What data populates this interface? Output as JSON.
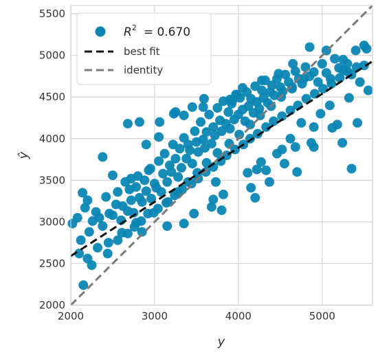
{
  "chart_data": {
    "type": "scatter",
    "xlabel": "y",
    "ylabel": "ŷ",
    "xlim": [
      2000,
      5600
    ],
    "ylim": [
      2000,
      5600
    ],
    "xticks": [
      "2000",
      "3000",
      "4000",
      "5000"
    ],
    "yticks": [
      "2000",
      "2500",
      "3000",
      "3500",
      "4000",
      "4500",
      "5000",
      "5500"
    ],
    "grid": true,
    "legend": {
      "placement": "top-left",
      "r2_prefix": "R",
      "r2_exp": "2",
      "r2_value": "= 0.670",
      "best_fit_label": "best fit",
      "identity_label": "identity"
    },
    "colors": {
      "points": "#0a86b3",
      "best_fit": "#111111",
      "identity": "#7a7a7a",
      "grid": "#d3d3d3",
      "frame": "#cfcfcf"
    },
    "best_fit": {
      "x": [
        2000,
        5600
      ],
      "y": [
        2590,
        4930
      ]
    },
    "identity": {
      "x": [
        2000,
        5600
      ],
      "y": [
        2000,
        5600
      ]
    },
    "points": {
      "x": [
        2020,
        2080,
        2120,
        2140,
        2170,
        2200,
        2220,
        2260,
        2300,
        2340,
        2380,
        2420,
        2460,
        2500,
        2540,
        2560,
        2600,
        2620,
        2650,
        2680,
        2700,
        2720,
        2750,
        2780,
        2800,
        2820,
        2850,
        2880,
        2900,
        2930,
        2960,
        3000,
        3020,
        3050,
        3080,
        3100,
        3120,
        3150,
        3180,
        3200,
        3220,
        3250,
        3280,
        3300,
        3320,
        3350,
        3380,
        3400,
        3420,
        3450,
        3480,
        3500,
        3520,
        3550,
        3580,
        3600,
        3620,
        3650,
        3680,
        3700,
        3720,
        3750,
        3780,
        3800,
        3820,
        3850,
        3880,
        3900,
        3920,
        3950,
        3980,
        4000,
        4020,
        4050,
        4080,
        4100,
        4120,
        4150,
        4180,
        4200,
        4220,
        4250,
        4280,
        4300,
        4320,
        4350,
        4380,
        4400,
        4430,
        4460,
        4500,
        4530,
        4560,
        4600,
        4640,
        4680,
        4720,
        4760,
        4800,
        4850,
        4900,
        4950,
        5000,
        5050,
        5100,
        5150,
        5200,
        5250,
        5300,
        5350,
        5400,
        5450,
        5500,
        5550,
        2200,
        2320,
        2440,
        2560,
        2680,
        2760,
        2840,
        2920,
        3040,
        3160,
        3240,
        3330,
        3440,
        3520,
        3610,
        3700,
        3790,
        3860,
        3960,
        4060,
        4140,
        4230,
        4330,
        4420,
        4520,
        4620,
        4710,
        4810,
        4910,
        5010,
        5110,
        5210,
        5310,
        5410,
        2680,
        2820,
        2380,
        2500,
        2150,
        3060,
        3230,
        2900,
        3450,
        3250,
        3590,
        3150,
        3900,
        3800,
        4050,
        3700,
        4280,
        4150,
        4480,
        4330,
        4650,
        4550,
        4850,
        4700,
        5050,
        4900,
        5250,
        5350,
        5500,
        5530,
        2720,
        2850,
        2950,
        3350,
        3050,
        3470,
        3350,
        3680,
        3580,
        3820,
        3930,
        3730,
        4110,
        3970,
        4220,
        4370,
        4520,
        4270,
        4620,
        4460,
        4750,
        4870,
        4980,
        5120,
        5180,
        5240,
        5320,
        5420,
        4680,
        5090,
        4200,
        4900,
        2250,
        2100,
        2450,
        2610,
        2780,
        2990,
        3140,
        3280,
        3400,
        3510,
        3620,
        3750,
        3890,
        4010,
        4140,
        4260,
        4390,
        4510,
        4640,
        4780
      ],
      "y": [
        2980,
        3050,
        2780,
        3350,
        3170,
        3260,
        2880,
        3010,
        3120,
        3050,
        2950,
        3300,
        3100,
        3080,
        3210,
        3360,
        3020,
        3190,
        3480,
        3130,
        3390,
        3260,
        3110,
        3420,
        3550,
        3290,
        3240,
        3500,
        3370,
        3620,
        3280,
        3460,
        3410,
        3730,
        3360,
        3580,
        3820,
        3480,
        3680,
        3600,
        3930,
        3760,
        3540,
        3880,
        3650,
        4010,
        3760,
        3930,
        3860,
        3700,
        4090,
        3960,
        3840,
        4200,
        3990,
        3890,
        4080,
        4290,
        3940,
        4140,
        4040,
        4370,
        4220,
        4090,
        4450,
        4180,
        4320,
        4120,
        4420,
        4230,
        4530,
        4290,
        4490,
        4350,
        4210,
        4560,
        4390,
        4480,
        4310,
        4630,
        4440,
        4360,
        4580,
        4490,
        4700,
        4430,
        4560,
        4640,
        4520,
        4720,
        4620,
        4570,
        4770,
        4680,
        4600,
        4810,
        4720,
        4660,
        4860,
        4750,
        4800,
        4680,
        4900,
        4790,
        4720,
        4960,
        4850,
        4820,
        4900,
        4770,
        5060,
        4680,
        4880,
        4580,
        2560,
        2690,
        2620,
        2780,
        2860,
        2940,
        3010,
        3100,
        3160,
        3240,
        3320,
        3390,
        3460,
        3520,
        3600,
        3660,
        3730,
        3800,
        3870,
        3930,
        4000,
        4060,
        4140,
        4210,
        4270,
        4340,
        4400,
        4480,
        4540,
        4600,
        4660,
        4730,
        4800,
        4860,
        4180,
        4200,
        3780,
        3560,
        2240,
        4200,
        4300,
        3930,
        4380,
        4320,
        4480,
        2950,
        4470,
        3140,
        4610,
        3270,
        4700,
        3410,
        4780,
        3620,
        4900,
        3700,
        5100,
        3600,
        5060,
        3900,
        4950,
        3640,
        5120,
        5080,
        3520,
        2880,
        3640,
        2980,
        4020,
        3100,
        4280,
        3180,
        4380,
        3330,
        4460,
        3480,
        3590,
        4530,
        3630,
        3480,
        3870,
        3720,
        4000,
        3820,
        4190,
        3950,
        4300,
        4130,
        4170,
        3950,
        4490,
        4190,
        3900,
        4400,
        3290,
        4140,
        2480,
        2620,
        2750,
        2870,
        2990,
        3110,
        3230,
        3360,
        3480,
        3590,
        3710,
        3830,
        3940,
        4050,
        4170,
        4280,
        4390,
        4500,
        4620,
        4720
      ]
    }
  }
}
